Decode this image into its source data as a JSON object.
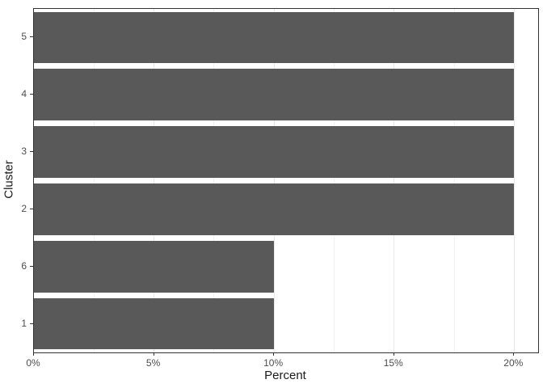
{
  "chart_data": {
    "type": "bar",
    "orientation": "horizontal",
    "title": "",
    "xlabel": "Percent",
    "ylabel": "Cluster",
    "categories": [
      "5",
      "4",
      "3",
      "2",
      "6",
      "1"
    ],
    "values": [
      20,
      20,
      20,
      20,
      10,
      10
    ],
    "value_unit": "%",
    "xlim": [
      0,
      21
    ],
    "x_major_ticks": [
      0,
      5,
      10,
      15,
      20
    ],
    "x_tick_labels": [
      "0%",
      "5%",
      "10%",
      "15%",
      "20%"
    ],
    "x_minor_gridlines": [
      2.5,
      7.5,
      12.5,
      17.5
    ],
    "bar_width_fraction": 0.9,
    "grid": "vertical-only",
    "legend": "none",
    "colors": {
      "bar_fill": "#595959",
      "panel_border": "#333333",
      "grid_major": "#E8E8E8",
      "grid_minor": "#F2F2F2",
      "tick_mark": "#333333",
      "tick_label": "#4D4D4D",
      "axis_title": "#1A1A1A",
      "background": "#FFFFFF"
    }
  }
}
